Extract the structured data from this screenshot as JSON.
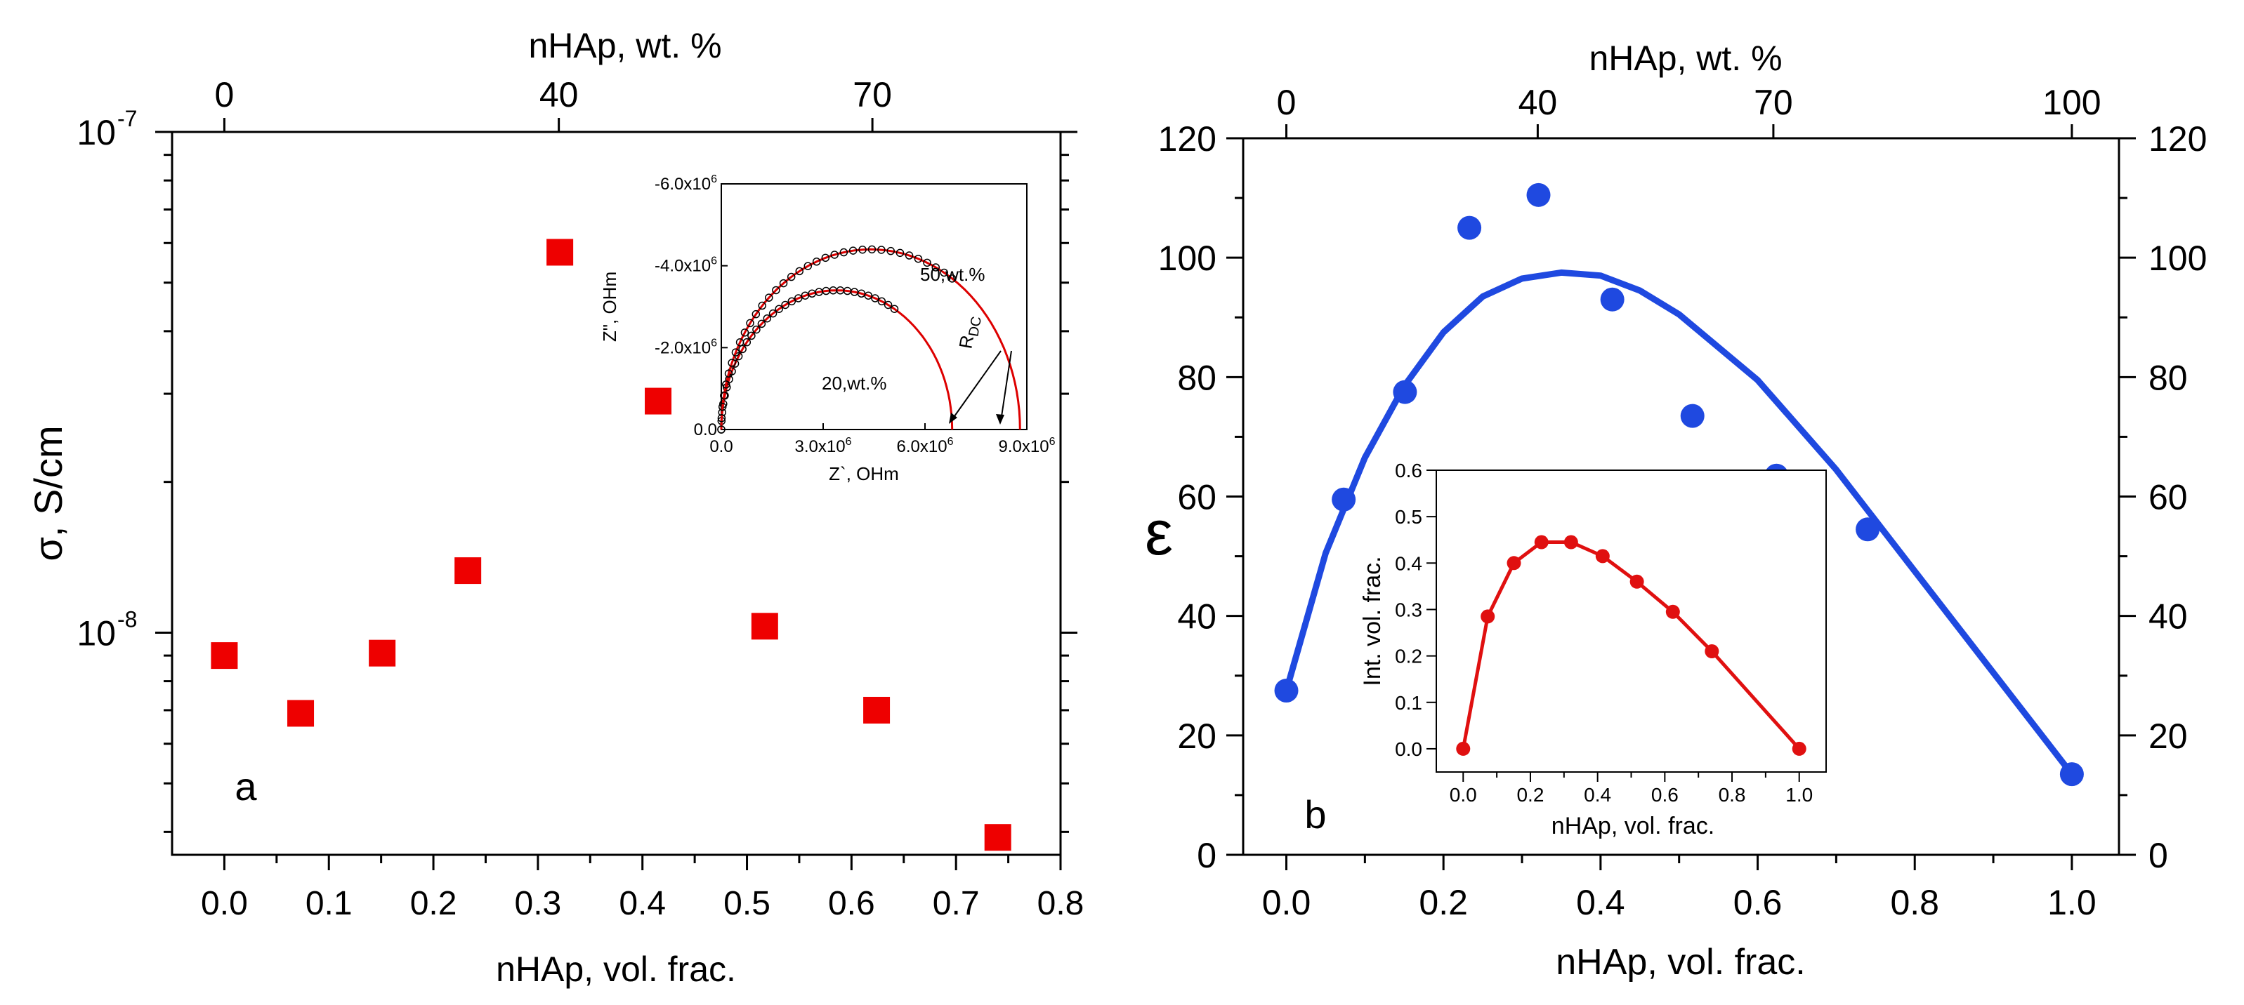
{
  "chart_data": [
    {
      "id": "panel-a",
      "type": "scatter",
      "panel_label": "a",
      "xlabel": "nHAp, vol. frac.",
      "ylabel": "σ, S/cm",
      "top_xlabel": "nHAp, wt. %",
      "top_ticks": [
        {
          "label": "0",
          "x": 0.0
        },
        {
          "label": "40",
          "x": 0.32
        },
        {
          "label": "70",
          "x": 0.62
        }
      ],
      "xlim": [
        -0.05,
        0.8
      ],
      "xticks": [
        "0.0",
        "0.1",
        "0.2",
        "0.3",
        "0.4",
        "0.5",
        "0.6",
        "0.7",
        "0.8"
      ],
      "yscale": "log",
      "ylim": [
        3.6e-09,
        1e-07
      ],
      "yticks": [
        {
          "base": "10",
          "exp": "-8",
          "value": 1e-08
        },
        {
          "base": "10",
          "exp": "-7",
          "value": 1e-07
        }
      ],
      "marker_color": "#ee0000",
      "x": [
        0.0,
        0.073,
        0.151,
        0.233,
        0.321,
        0.415,
        0.517,
        0.624,
        0.74
      ],
      "y": [
        9e-09,
        6.9e-09,
        9.1e-09,
        1.33e-08,
        5.75e-08,
        2.9e-08,
        1.03e-08,
        7e-09,
        3.9e-09
      ]
    },
    {
      "id": "panel-a-inset",
      "type": "scatter",
      "xlabel": "Z`, OHm",
      "ylabel": "Z\", OHm",
      "xlim": [
        0,
        9000000.0
      ],
      "ylim": [
        0,
        6000000.0
      ],
      "xticks": [
        {
          "label": "0.0",
          "value": 0
        },
        {
          "label": "3.0x10",
          "sup": "6",
          "value": 3000000.0
        },
        {
          "label": "6.0x10",
          "sup": "6",
          "value": 6000000.0
        },
        {
          "label": "9.0x10",
          "sup": "6",
          "value": 9000000.0
        }
      ],
      "yticks": [
        {
          "label": "0.0",
          "value": 0
        },
        {
          "label": "-2.0x10",
          "sup": "6",
          "value": 2000000.0
        },
        {
          "label": "-4.0x10",
          "sup": "6",
          "value": 4000000.0
        },
        {
          "label": "-6.0x10",
          "sup": "6",
          "value": 6000000.0
        }
      ],
      "fit_color": "#dd0000",
      "series": [
        {
          "name": "20,wt.%",
          "r_dc": 6800000.0,
          "data_end": 5100000.0
        },
        {
          "name": "50,wt.%",
          "r_dc": 8800000.0,
          "data_end": 6800000.0
        }
      ],
      "annotation": {
        "text": "R",
        "sub": "DC"
      }
    },
    {
      "id": "panel-b",
      "type": "scatter",
      "panel_label": "b",
      "xlabel": "nHAp, vol. frac.",
      "ylabel": "ε",
      "top_xlabel": "nHAp, wt. %",
      "top_ticks": [
        {
          "label": "0",
          "x": 0.0
        },
        {
          "label": "40",
          "x": 0.32
        },
        {
          "label": "70",
          "x": 0.62
        },
        {
          "label": "100",
          "x": 1.0
        }
      ],
      "xlim": [
        -0.055,
        1.06
      ],
      "ylim": [
        0,
        120
      ],
      "xticks": [
        "0.0",
        "0.2",
        "0.4",
        "0.6",
        "0.8",
        "1.0"
      ],
      "yticks": [
        "0",
        "20",
        "40",
        "60",
        "80",
        "100",
        "120"
      ],
      "marker_color": "#1f49e0",
      "line_color": "#1f49e0",
      "x": [
        0.0,
        0.073,
        0.151,
        0.233,
        0.321,
        0.415,
        0.517,
        0.624,
        0.74,
        1.0
      ],
      "y": [
        27.5,
        59.5,
        77.5,
        105.0,
        110.5,
        93.0,
        73.5,
        63.5,
        54.5,
        13.5
      ],
      "fit": {
        "x": [
          0.0,
          0.05,
          0.1,
          0.15,
          0.2,
          0.25,
          0.3,
          0.35,
          0.4,
          0.45,
          0.5,
          0.6,
          0.7,
          0.8,
          0.9,
          1.0
        ],
        "y": [
          27.5,
          50.5,
          66.5,
          78.5,
          87.5,
          93.5,
          96.5,
          97.5,
          97.0,
          94.5,
          90.5,
          79.5,
          64.5,
          47.5,
          30.5,
          13.5
        ]
      }
    },
    {
      "id": "panel-b-inset",
      "type": "line",
      "xlabel": "nHAp, vol. frac.",
      "ylabel": "Int. vol. frac.",
      "xlim": [
        -0.08,
        1.08
      ],
      "ylim": [
        -0.05,
        0.6
      ],
      "xticks": [
        "0.0",
        "0.2",
        "0.4",
        "0.6",
        "0.8",
        "1.0"
      ],
      "yticks": [
        "0.0",
        "0.1",
        "0.2",
        "0.3",
        "0.4",
        "0.5",
        "0.6"
      ],
      "color": "#e01010",
      "x": [
        0.0,
        0.073,
        0.151,
        0.233,
        0.321,
        0.415,
        0.517,
        0.624,
        0.74,
        1.0
      ],
      "y": [
        0.0,
        0.285,
        0.4,
        0.445,
        0.445,
        0.415,
        0.36,
        0.295,
        0.21,
        0.0
      ]
    }
  ]
}
